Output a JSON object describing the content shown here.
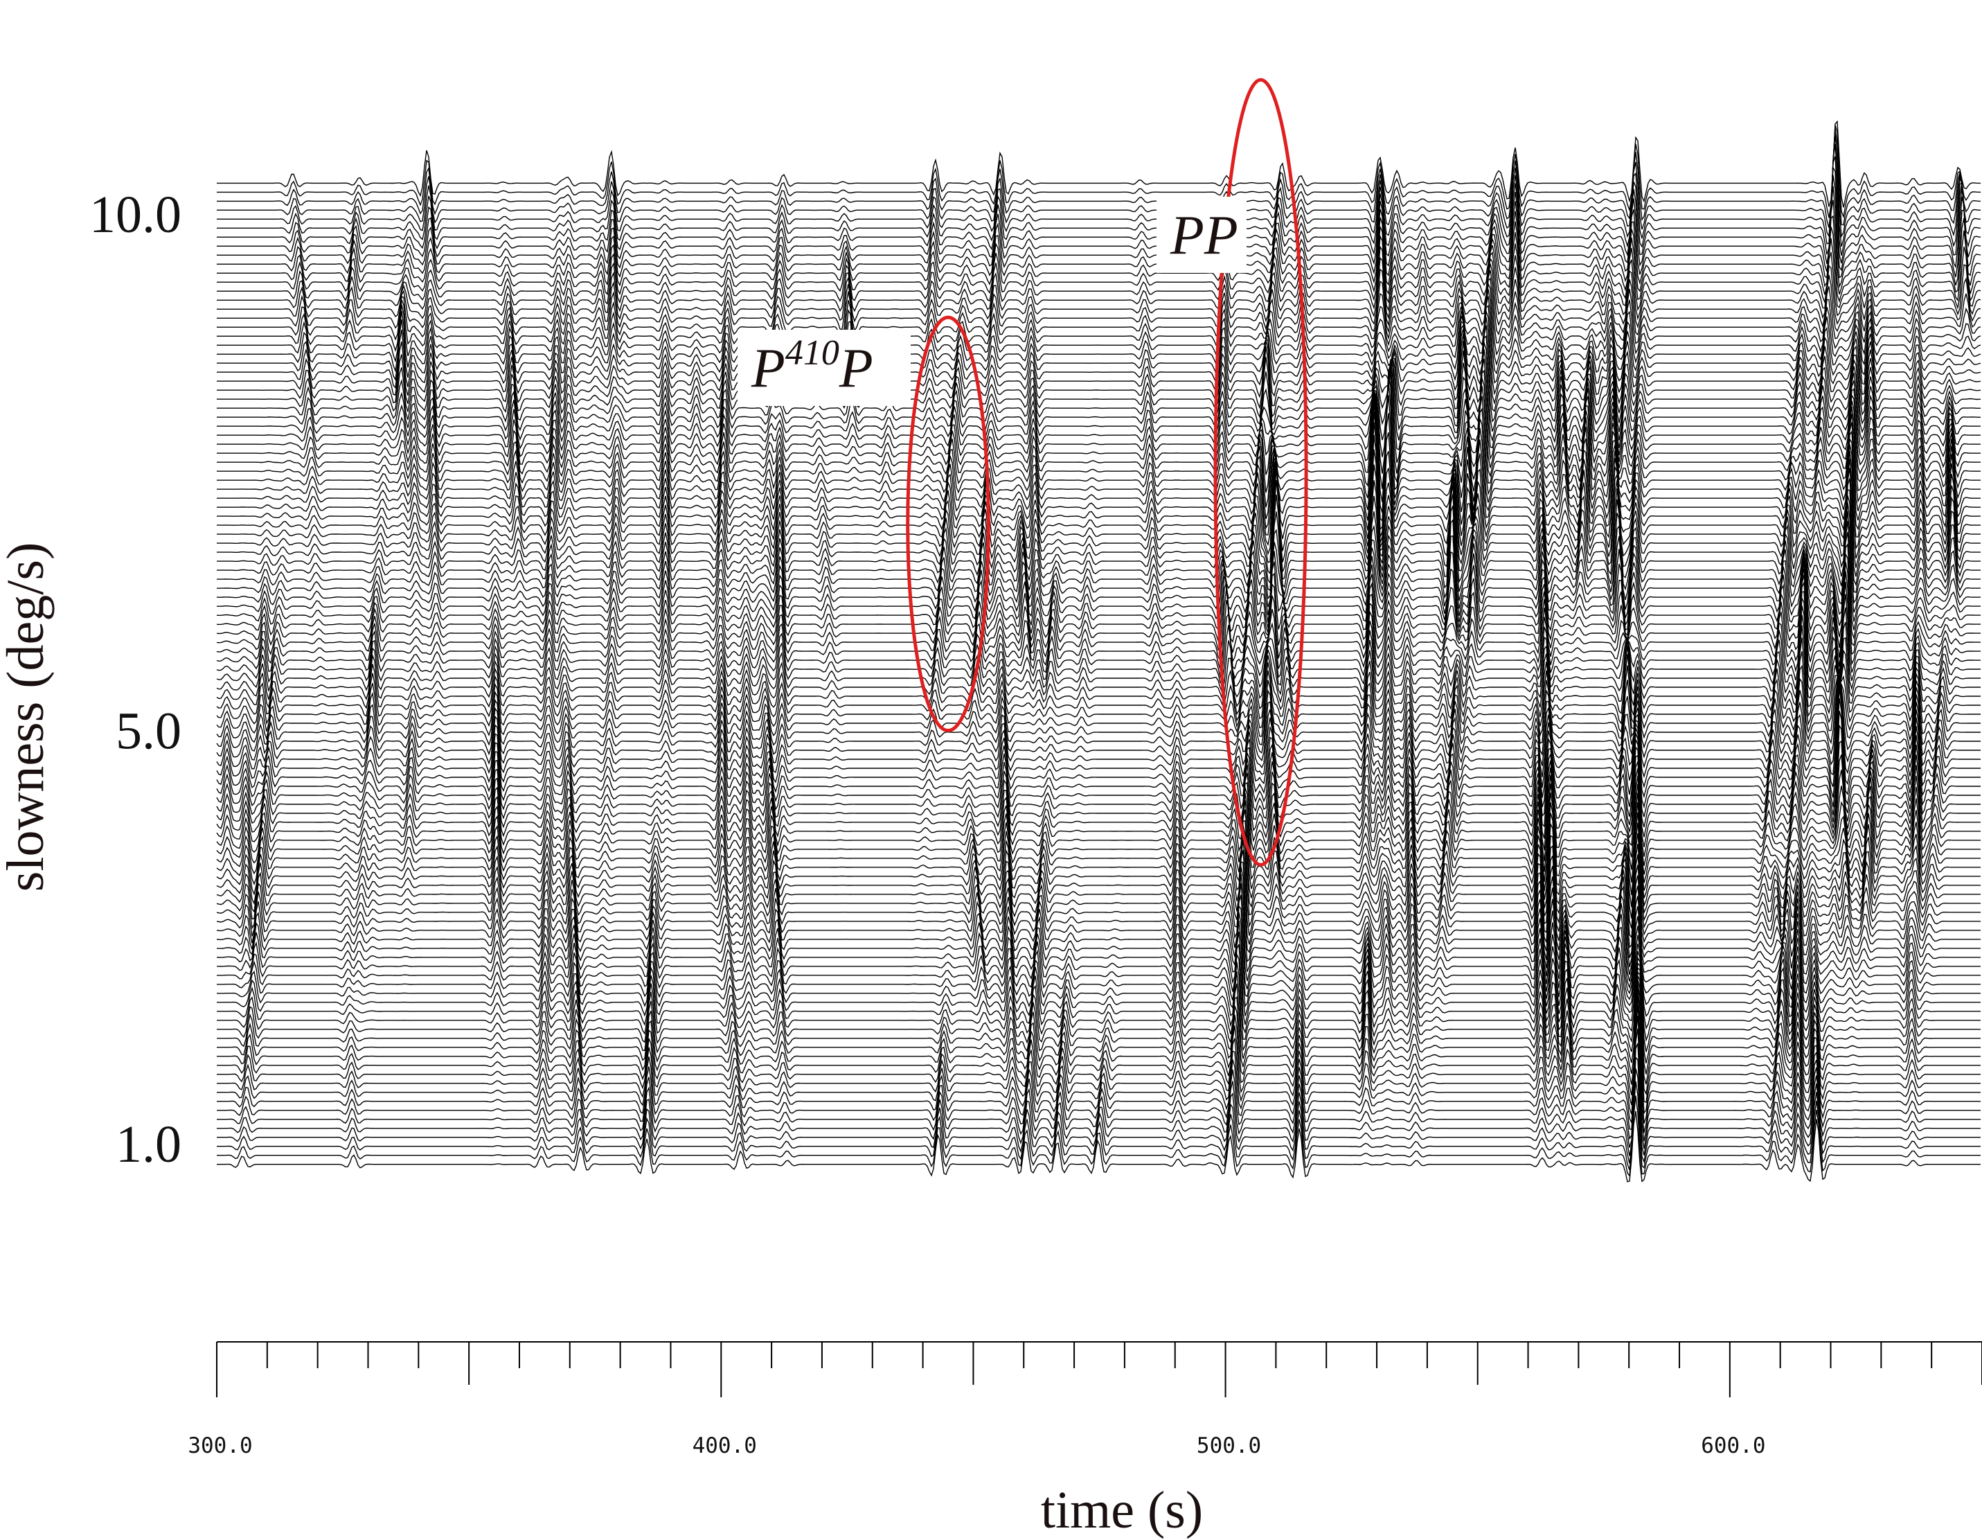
{
  "chart_data": {
    "type": "line",
    "description_kind": "vespagram",
    "title": "",
    "xlabel": "time (s)",
    "ylabel": "slowness (deg/s)",
    "xlim": [
      300.0,
      650.0
    ],
    "ylim": [
      0.0,
      11.0
    ],
    "x_tick_labels": [
      "300.0",
      "400.0",
      "500.0",
      "600.0"
    ],
    "x_tick_values": [
      300,
      400,
      500,
      600
    ],
    "x_minor_step": 10,
    "y_tick_labels": [
      "10.0",
      "5.0",
      "1.0"
    ],
    "y_tick_values": [
      10.0,
      5.0,
      1.0
    ],
    "trace_slowness_range": [
      0.8,
      10.3
    ],
    "trace_count": 110,
    "annotation_color": "#e02020",
    "annotations": [
      {
        "label_base": "P",
        "label_sup": "410",
        "label_tail": "P",
        "ellipse_center": [
          445,
          7.0
        ],
        "ellipse_radii": [
          8,
          2.0
        ]
      },
      {
        "label_base": "PP",
        "label_sup": "",
        "label_tail": "",
        "ellipse_center": [
          507,
          7.5
        ],
        "ellipse_radii": [
          9,
          3.8
        ]
      }
    ]
  }
}
